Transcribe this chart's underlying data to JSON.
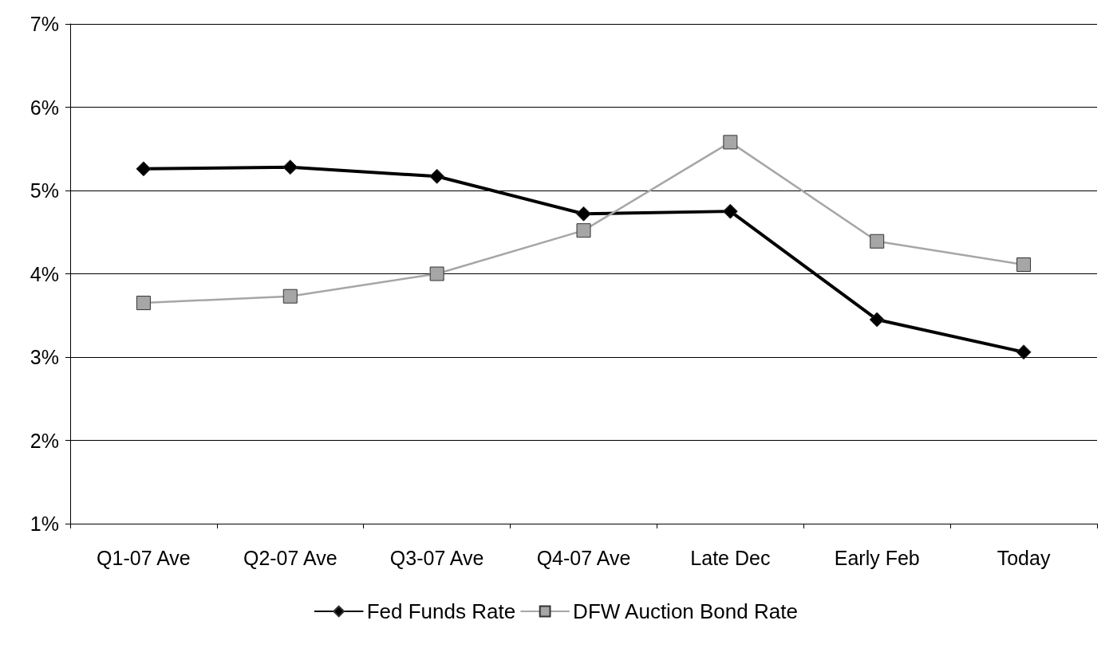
{
  "chart_data": {
    "type": "line",
    "categories": [
      "Q1-07 Ave",
      "Q2-07 Ave",
      "Q3-07 Ave",
      "Q4-07 Ave",
      "Late Dec",
      "Early Feb",
      "Today"
    ],
    "series": [
      {
        "name": "Fed Funds Rate",
        "color": "#000000",
        "marker": "diamond",
        "values": [
          5.26,
          5.28,
          5.17,
          4.72,
          4.75,
          3.45,
          3.06
        ]
      },
      {
        "name": "DFW Auction Bond Rate",
        "color": "#a6a6a6",
        "marker": "square",
        "values": [
          3.65,
          3.73,
          4.0,
          4.52,
          5.58,
          4.39,
          4.11
        ]
      }
    ],
    "ylim": [
      1,
      7
    ],
    "yticks": [
      {
        "value": 1,
        "label": "1%"
      },
      {
        "value": 2,
        "label": "2%"
      },
      {
        "value": 3,
        "label": "3%"
      },
      {
        "value": 4,
        "label": "4%"
      },
      {
        "value": 5,
        "label": "5%"
      },
      {
        "value": 6,
        "label": "6%"
      },
      {
        "value": 7,
        "label": "7%"
      }
    ],
    "grid": "y",
    "legend": "bottom",
    "line_style": "solid"
  }
}
